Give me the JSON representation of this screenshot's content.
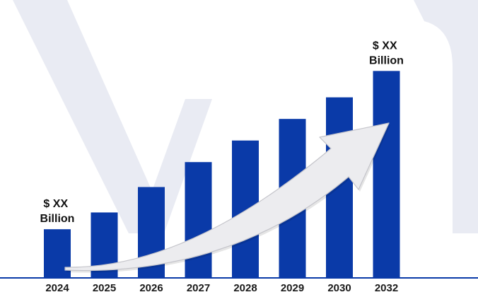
{
  "colors": {
    "bar": "#0a3aa8",
    "axis": "#0a3aa8",
    "arrow_fill": "#ececef",
    "arrow_stroke": "#c4c4ca",
    "watermark": "#e9ebf3"
  },
  "icons": {
    "growth_arrow": "trend-arrow-icon",
    "watermark": "brand-watermark"
  },
  "chart_data": {
    "type": "bar",
    "categories": [
      "2024",
      "2025",
      "2026",
      "2027",
      "2028",
      "2029",
      "2030",
      "2032"
    ],
    "values": [
      1,
      1.35,
      1.88,
      2.4,
      2.85,
      3.3,
      3.75,
      4.3
    ],
    "ylim": [
      0,
      4.6
    ],
    "grid": false,
    "legend": "none",
    "annotations": {
      "first": "$ XX Billion",
      "last": "$ XX Billion",
      "first_lines": [
        "$ XX",
        "Billion"
      ],
      "last_lines": [
        "$ XX",
        "Billion"
      ]
    }
  }
}
